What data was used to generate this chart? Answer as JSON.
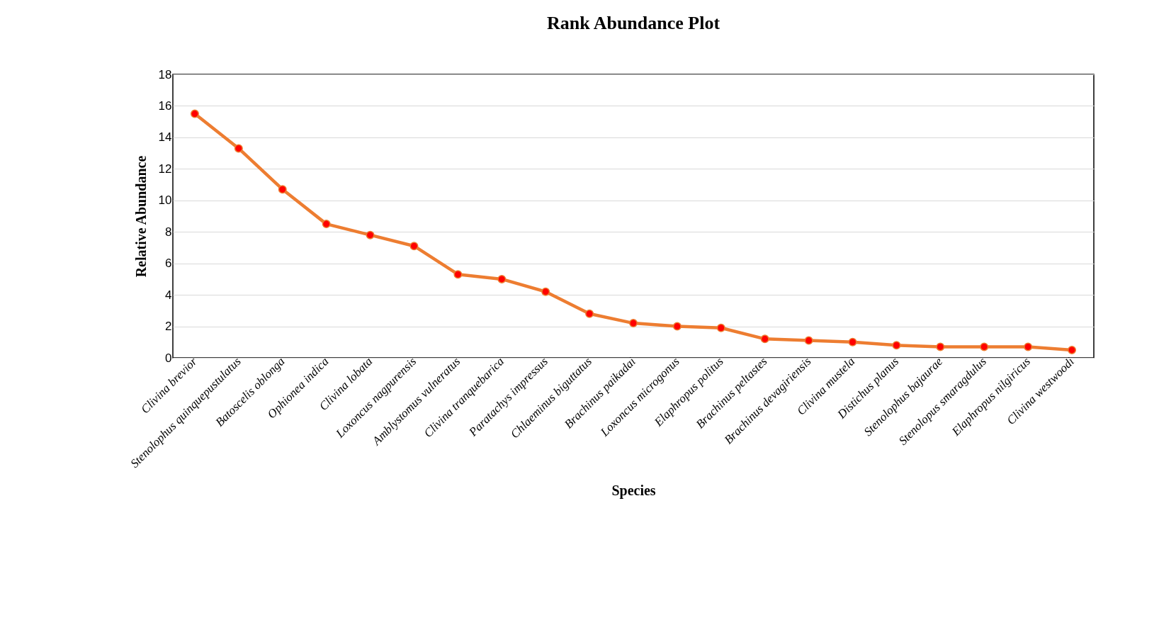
{
  "chart_data": {
    "type": "line",
    "title": "Rank Abundance Plot",
    "xlabel": "Species",
    "ylabel": "Relative Abundance",
    "categories": [
      "Clivina brevior",
      "Stenolophus quinquepustulatus",
      "Batoscelis oblonga",
      "Ophionea indica",
      "Clivina lobata",
      "Loxoncus nagpurensis",
      "Amblystomus vulneratus",
      "Clivina tranquebarica",
      "Paratachys impressus",
      "Chlaeminus biguttatus",
      "Brachinus paikadai",
      "Loxoncus microgonus",
      "Elaphropus politus",
      "Brachinus peltastes",
      "Brachinus devagiriensis",
      "Clivina mustela",
      "Distichus planus",
      "Stenolophus bajaurae",
      "Stenolopus smaragdulus",
      "Elaphropus nilgiricus",
      "Clivina westwoodi"
    ],
    "series": [
      {
        "color": "#ed7d31",
        "values": [
          15.5,
          13.3,
          10.7,
          8.5,
          7.8,
          7.1,
          5.3,
          5.0,
          4.2,
          2.8,
          2.2,
          2.0,
          1.9,
          1.2,
          1.1,
          1.0,
          0.8,
          0.7,
          0.7,
          0.7,
          0.5
        ]
      }
    ],
    "ylim": [
      0,
      18
    ],
    "yticks": [
      0,
      2,
      4,
      6,
      8,
      10,
      12,
      14,
      16,
      18
    ],
    "grid": "y",
    "marker": "circle",
    "line_style": "solid"
  }
}
